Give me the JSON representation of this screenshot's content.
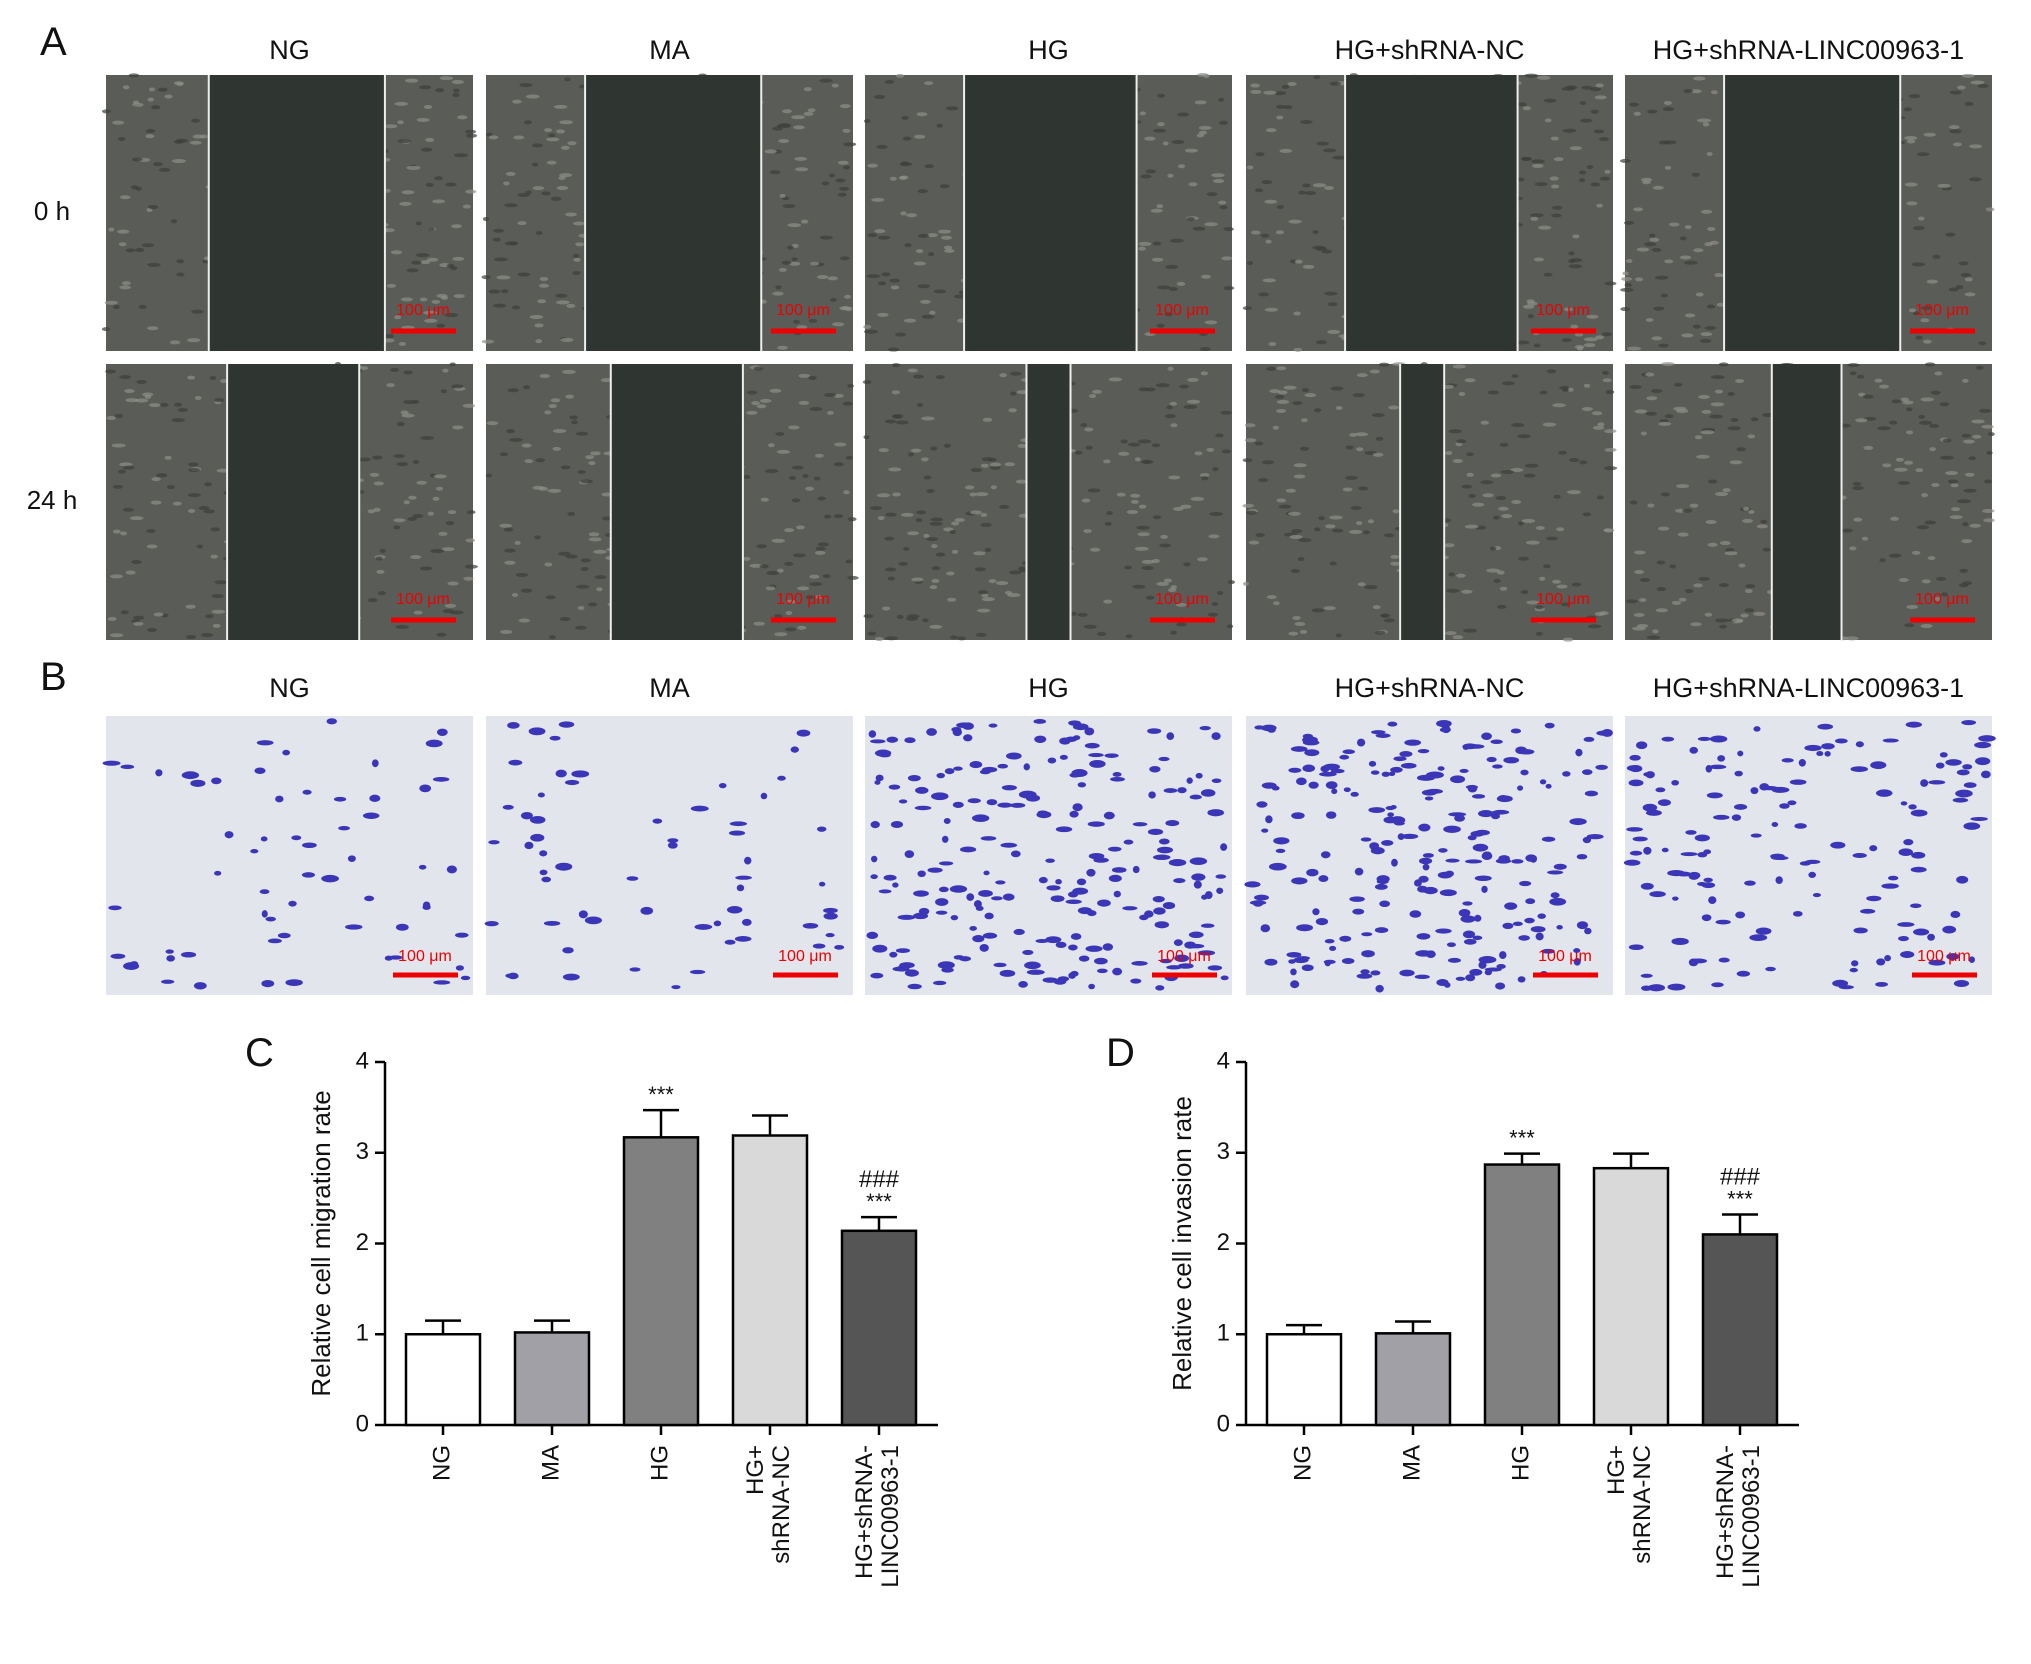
{
  "panels": {
    "A": {
      "label": "A",
      "columns": [
        "NG",
        "MA",
        "HG",
        "HG+shRNA-NC",
        "HG+shRNA-LINC00963-1"
      ],
      "rows": [
        {
          "label": "0 h",
          "scale_bars": [
            "100 μm",
            "100 μm",
            "100 μm",
            "100 μm",
            "100 μm"
          ]
        },
        {
          "label": "24 h",
          "scale_bars": [
            "100 μm",
            "100 μm",
            "100 μm",
            "100 μm",
            "100 μm"
          ]
        }
      ]
    },
    "B": {
      "label": "B",
      "columns": [
        "NG",
        "MA",
        "HG",
        "HG+shRNA-NC",
        "HG+shRNA-LINC00963-1"
      ],
      "scale_bars": [
        "100 μm",
        "100 μm",
        "100 μm",
        "100 μm",
        "100 μm"
      ]
    }
  },
  "chart_data": [
    {
      "type": "bar",
      "panel_label": "C",
      "ylabel": "Relative cell migration rate",
      "categories": [
        "NG",
        "MA",
        "HG",
        "HG+\nshRNA-NC",
        "HG+shRNA-\nLINC00963-1"
      ],
      "values": [
        1.0,
        1.02,
        3.17,
        3.19,
        2.14
      ],
      "errors": [
        0.15,
        0.13,
        0.3,
        0.22,
        0.15
      ],
      "colors": [
        "#ffffff",
        "#a0a0a6",
        "#808080",
        "#d9d9d9",
        "#555555"
      ],
      "significance": [
        null,
        null,
        "***",
        null,
        "***"
      ],
      "significance_hg": [
        null,
        null,
        null,
        null,
        "###"
      ],
      "ylim": [
        0,
        4
      ],
      "yticks": [
        0,
        1,
        2,
        3,
        4
      ]
    },
    {
      "type": "bar",
      "panel_label": "D",
      "ylabel": "Relative cell invasion rate",
      "categories": [
        "NG",
        "MA",
        "HG",
        "HG+\nshRNA-NC",
        "HG+shRNA-\nLINC00963-1"
      ],
      "values": [
        1.0,
        1.01,
        2.87,
        2.83,
        2.1
      ],
      "errors": [
        0.1,
        0.13,
        0.12,
        0.16,
        0.22
      ],
      "colors": [
        "#ffffff",
        "#a0a0a6",
        "#808080",
        "#d9d9d9",
        "#555555"
      ],
      "significance": [
        null,
        null,
        "***",
        null,
        "***"
      ],
      "significance_hg": [
        null,
        null,
        null,
        null,
        "###"
      ],
      "ylim": [
        0,
        4
      ],
      "yticks": [
        0,
        1,
        2,
        3,
        4
      ]
    }
  ]
}
